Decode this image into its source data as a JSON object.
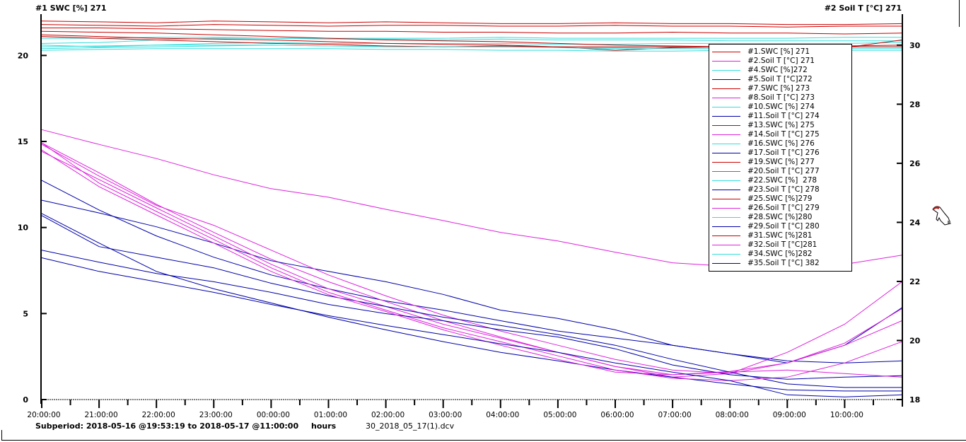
{
  "chart_data": {
    "type": "line",
    "left_axis_title": "#1  SWC [%] 271",
    "right_axis_title": "#2  Soil T [°C] 271",
    "x": [
      "20:00:00",
      "21:00:00",
      "22:00:00",
      "23:00:00",
      "00:00:00",
      "01:00:00",
      "02:00:00",
      "03:00:00",
      "04:00:00",
      "05:00:00",
      "06:00:00",
      "07:00:00",
      "08:00:00",
      "09:00:00",
      "10:00:00",
      "11:00:00"
    ],
    "x_tick_labels": [
      "20:00:00",
      "21:00:00",
      "22:00:00",
      "23:00:00",
      "00:00:00",
      "01:00:00",
      "02:00:00",
      "03:00:00",
      "04:00:00",
      "05:00:00",
      "06:00:00",
      "07:00:00",
      "08:00:00",
      "09:00:00",
      "10:00:00"
    ],
    "x_label": "hours",
    "left_ylim": [
      0,
      22.4
    ],
    "left_ticks": [
      0,
      5,
      10,
      15,
      20
    ],
    "right_ylim": [
      18,
      31.05
    ],
    "right_ticks": [
      18,
      20,
      22,
      24,
      26,
      28,
      30
    ],
    "grid": false,
    "legend_placement": "top-right",
    "colors": {
      "swc_a": "#cc0000",
      "soil_a": "#dd22dd",
      "swc_b": "#33dddd",
      "soil_b": "#0000aa"
    },
    "series": [
      {
        "name": "#1.SWC [%] 271",
        "axis": "left",
        "color": "#cc0000",
        "values": [
          22.0,
          21.95,
          21.9,
          22.0,
          21.95,
          21.9,
          21.95,
          21.9,
          21.85,
          21.85,
          21.9,
          21.85,
          21.85,
          21.8,
          21.8,
          21.85
        ]
      },
      {
        "name": "#2.Soil T [°C] 271",
        "axis": "right",
        "color": "#dd22dd",
        "values": [
          27.14,
          26.64,
          26.16,
          25.61,
          25.14,
          24.85,
          24.44,
          24.06,
          23.66,
          23.37,
          22.99,
          22.63,
          22.51,
          22.65,
          22.58,
          22.89
        ]
      },
      {
        "name": "#4.SWC [%]272",
        "axis": "left",
        "color": "#33dddd",
        "values": [
          21.0,
          21.0,
          21.05,
          21.05,
          21.0,
          21.0,
          21.0,
          21.0,
          21.05,
          21.0,
          21.0,
          21.0,
          21.0,
          21.0,
          21.05,
          21.05
        ]
      },
      {
        "name": "#5.Soil T [°C]272",
        "axis": "right",
        "color": "#0000aa",
        "values": [
          25.42,
          24.42,
          23.54,
          22.82,
          22.22,
          21.75,
          21.34,
          21.03,
          20.67,
          20.32,
          20.08,
          19.84,
          19.55,
          19.31,
          19.24,
          19.31
        ]
      },
      {
        "name": "#7.SWC [%] 273",
        "axis": "left",
        "color": "#cc0000",
        "values": [
          21.8,
          21.75,
          21.7,
          21.8,
          21.75,
          21.7,
          21.75,
          21.75,
          21.7,
          21.7,
          21.75,
          21.7,
          21.7,
          21.65,
          21.7,
          21.7
        ]
      },
      {
        "name": "#8.Soil T [°C] 273",
        "axis": "right",
        "color": "#dd22dd",
        "values": [
          26.69,
          25.68,
          24.61,
          23.66,
          22.75,
          21.99,
          21.32,
          20.67,
          20.12,
          19.6,
          19.12,
          18.76,
          18.88,
          19.6,
          20.55,
          21.99
        ]
      },
      {
        "name": "#10.SWC [%] 274",
        "axis": "left",
        "color": "#33dddd",
        "values": [
          20.7,
          20.75,
          20.9,
          21.0,
          21.0,
          20.95,
          20.95,
          20.9,
          20.95,
          20.9,
          20.9,
          20.9,
          20.85,
          20.85,
          20.85,
          20.85
        ]
      },
      {
        "name": "#11.Soil T [°C] 274",
        "axis": "right",
        "color": "#0000aa",
        "values": [
          24.75,
          24.32,
          23.85,
          23.3,
          22.7,
          22.34,
          21.99,
          21.56,
          21.03,
          20.75,
          20.36,
          19.84,
          19.55,
          19.24,
          19.84,
          21.11
        ]
      },
      {
        "name": "#13.SWC [%] 275",
        "axis": "left",
        "color": "#cc0000",
        "values": [
          21.6,
          21.6,
          21.55,
          21.5,
          21.45,
          21.4,
          21.4,
          21.35,
          21.35,
          21.3,
          21.3,
          21.35,
          21.3,
          21.3,
          21.25,
          21.3
        ]
      },
      {
        "name": "#14.Soil T [°C] 275",
        "axis": "right",
        "color": "#dd22dd",
        "values": [
          26.64,
          25.57,
          24.57,
          23.9,
          23.06,
          22.22,
          21.51,
          20.86,
          20.32,
          19.84,
          19.36,
          19.0,
          18.88,
          19.24,
          19.84,
          20.67
        ]
      },
      {
        "name": "#16.SWC [%] 276",
        "axis": "left",
        "color": "#33dddd",
        "values": [
          20.6,
          20.5,
          20.6,
          20.7,
          20.75,
          20.7,
          20.7,
          20.7,
          20.7,
          20.65,
          20.65,
          20.7,
          20.7,
          20.7,
          20.7,
          20.75
        ]
      },
      {
        "name": "#17.Soil T [°C] 276",
        "axis": "right",
        "color": "#0000aa",
        "values": [
          24.3,
          23.3,
          22.34,
          21.75,
          21.27,
          20.79,
          20.36,
          19.96,
          19.6,
          19.31,
          19.0,
          18.76,
          18.53,
          18.33,
          18.29,
          18.29
        ]
      },
      {
        "name": "#19.SWC [%] 277",
        "axis": "left",
        "color": "#cc0000",
        "values": [
          21.4,
          21.35,
          21.3,
          21.2,
          21.1,
          21.0,
          20.9,
          20.85,
          20.8,
          20.7,
          20.6,
          20.55,
          20.5,
          20.5,
          20.55,
          20.6
        ]
      },
      {
        "name": "#20.Soil T [°C] 277",
        "axis": "right",
        "color": "#dd22dd",
        "values": [
          26.4,
          25.45,
          24.49,
          23.54,
          22.58,
          21.75,
          21.15,
          20.55,
          20.08,
          19.6,
          19.12,
          18.84,
          18.95,
          19.24,
          19.91,
          21.08
        ]
      },
      {
        "name": "#22.SWC [%]  278",
        "axis": "left",
        "color": "#33dddd",
        "values": [
          20.4,
          20.45,
          20.5,
          20.55,
          20.6,
          20.55,
          20.55,
          20.5,
          20.5,
          20.5,
          20.45,
          20.5,
          20.5,
          20.5,
          20.5,
          20.5
        ]
      },
      {
        "name": "#23.Soil T [°C] 278",
        "axis": "right",
        "color": "#0000aa",
        "values": [
          24.23,
          23.18,
          22.82,
          22.46,
          21.94,
          21.51,
          21.15,
          20.79,
          20.51,
          20.2,
          19.84,
          19.36,
          18.93,
          18.53,
          18.41,
          18.41
        ]
      },
      {
        "name": "#25.SWC [%]279",
        "axis": "left",
        "color": "#cc0000",
        "values": [
          21.2,
          21.1,
          21.0,
          20.95,
          20.9,
          20.8,
          20.7,
          20.65,
          20.6,
          20.5,
          20.5,
          20.5,
          20.5,
          20.45,
          20.45,
          20.9
        ]
      },
      {
        "name": "#26.Soil T [°C] 279",
        "axis": "right",
        "color": "#dd22dd",
        "values": [
          26.69,
          25.33,
          24.37,
          23.42,
          22.46,
          21.63,
          21.03,
          20.43,
          19.96,
          19.48,
          19.0,
          18.72,
          18.64,
          18.76,
          19.24,
          19.96
        ]
      },
      {
        "name": "#28.SWC [%]280",
        "axis": "left",
        "color": "#33dddd",
        "values": [
          20.3,
          20.35,
          20.4,
          20.4,
          20.4,
          20.4,
          20.35,
          20.35,
          20.3,
          20.3,
          20.25,
          20.25,
          20.3,
          20.3,
          20.3,
          20.3
        ]
      },
      {
        "name": "#29.Soil T [°C] 280",
        "axis": "right",
        "color": "#0000aa",
        "values": [
          23.06,
          22.65,
          22.27,
          21.99,
          21.63,
          21.22,
          20.91,
          20.67,
          20.36,
          20.12,
          19.72,
          19.17,
          18.84,
          18.69,
          18.76,
          18.81
        ]
      },
      {
        "name": "#31.SWC [%]281",
        "axis": "left",
        "color": "#cc0000",
        "values": [
          21.1,
          21.0,
          20.9,
          20.8,
          20.7,
          20.65,
          20.55,
          20.5,
          20.55,
          20.5,
          20.3,
          20.45,
          20.5,
          20.45,
          20.5,
          20.5
        ]
      },
      {
        "name": "#32.Soil T [°C]281",
        "axis": "right",
        "color": "#dd22dd",
        "values": [
          26.45,
          25.21,
          24.25,
          23.3,
          22.34,
          21.55,
          20.98,
          20.36,
          19.84,
          19.36,
          18.93,
          18.84,
          18.93,
          19.0,
          18.88,
          18.76
        ]
      },
      {
        "name": "#34.SWC [%]282",
        "axis": "left",
        "color": "#33dddd",
        "values": [
          20.5,
          20.55,
          20.6,
          20.6,
          20.6,
          20.55,
          20.5,
          20.5,
          20.5,
          20.45,
          20.4,
          20.4,
          20.4,
          20.4,
          20.4,
          20.4
        ]
      },
      {
        "name": "#35.Soil T [°C] 382",
        "axis": "right",
        "color": "#0000aa",
        "values": [
          22.8,
          22.34,
          21.99,
          21.63,
          21.22,
          20.84,
          20.51,
          20.2,
          19.89,
          19.6,
          19.24,
          18.93,
          18.64,
          18.16,
          18.09,
          18.16
        ]
      }
    ]
  },
  "footer": {
    "subperiod": "Subperiod: 2018-05-16 @19:53:19  to  2018-05-17 @11:00:00",
    "x_unit": "hours",
    "filename": "30_2018_05_17(1).dcv"
  },
  "cursor_icon": "hand-pointer-icon"
}
